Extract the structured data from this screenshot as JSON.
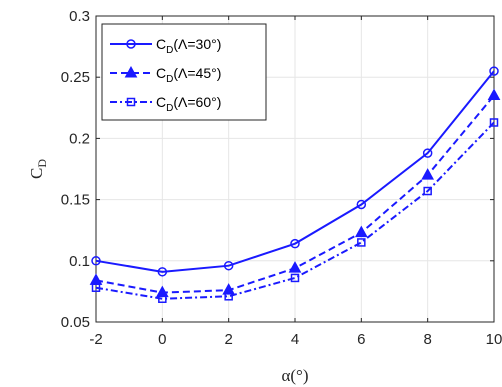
{
  "chart_data": {
    "type": "line",
    "xlabel": "α(°)",
    "ylabel": "C",
    "ylabel_sub": "D",
    "xlim": [
      -2,
      10
    ],
    "ylim": [
      0.05,
      0.3
    ],
    "x_ticks": [
      "-2",
      "0",
      "2",
      "4",
      "6",
      "8",
      "10"
    ],
    "y_ticks": [
      "0.05",
      "0.1",
      "0.15",
      "0.2",
      "0.25",
      "0.3"
    ],
    "grid": true,
    "legend_position": "top-left",
    "x": [
      -2,
      0,
      2,
      4,
      6,
      8,
      10
    ],
    "series": [
      {
        "legend_main": "C",
        "legend_sub": "D",
        "legend_rest": "(Λ=30°)",
        "values": [
          0.1,
          0.091,
          0.096,
          0.114,
          0.146,
          0.188,
          0.255
        ],
        "marker": "circle",
        "dash": "solid"
      },
      {
        "legend_main": "C",
        "legend_sub": "D",
        "legend_rest": "(Λ=45°)",
        "values": [
          0.084,
          0.074,
          0.076,
          0.094,
          0.123,
          0.17,
          0.235
        ],
        "marker": "triangle",
        "dash": "dashed"
      },
      {
        "legend_main": "C",
        "legend_sub": "D",
        "legend_rest": "(Λ=60°)",
        "values": [
          0.078,
          0.069,
          0.071,
          0.086,
          0.115,
          0.157,
          0.213
        ],
        "marker": "square",
        "dash": "dashdot"
      }
    ],
    "color": "#1a1aff"
  }
}
